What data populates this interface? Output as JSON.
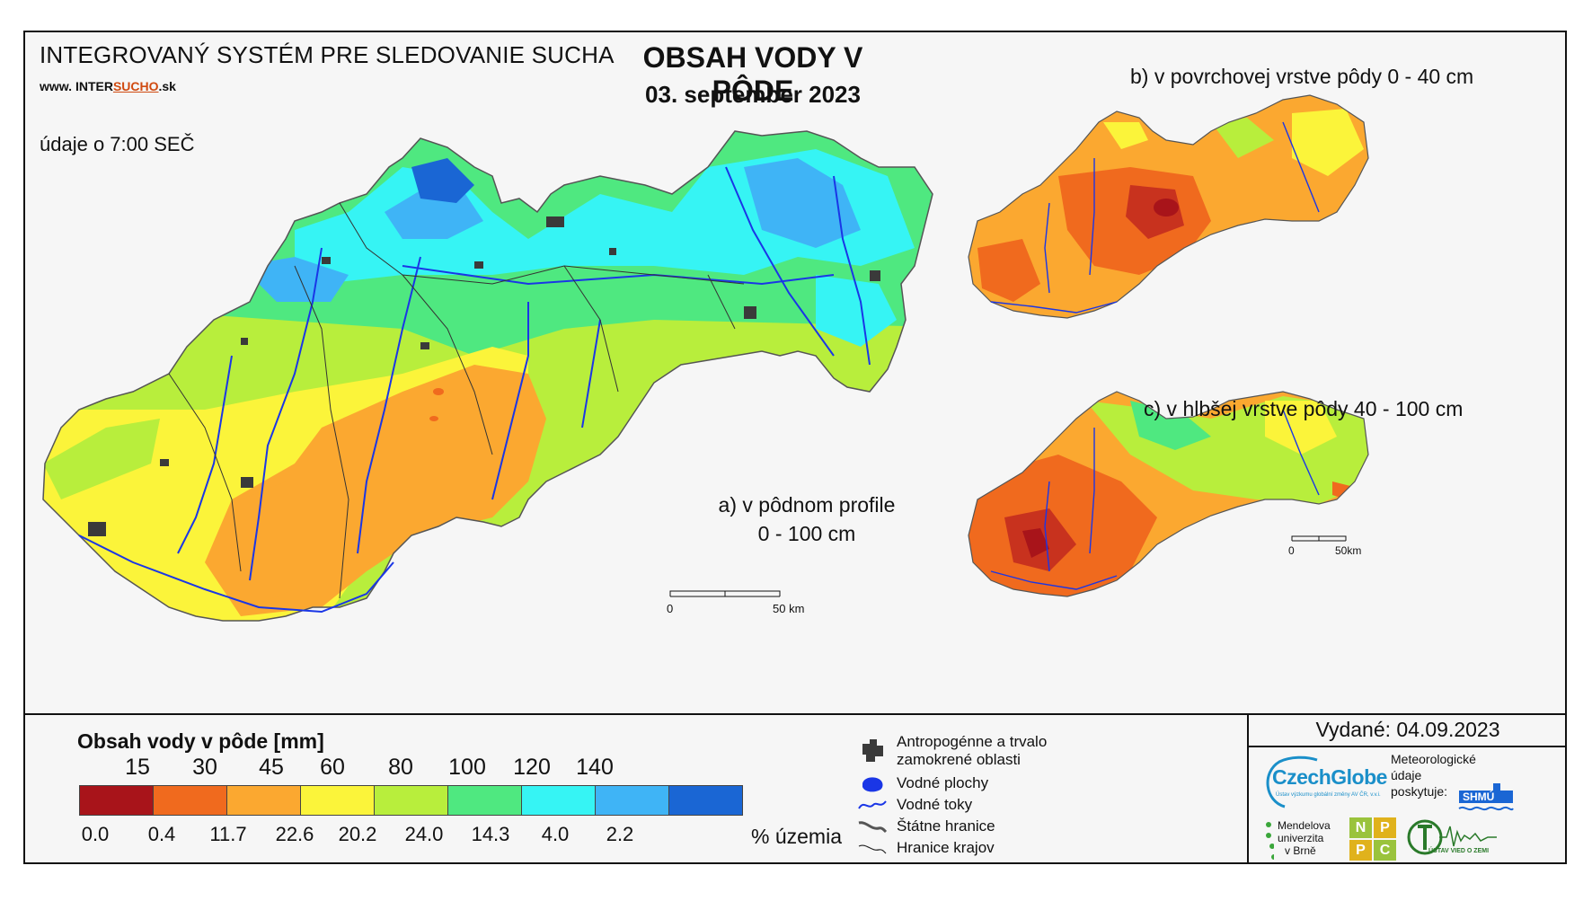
{
  "header": {
    "system_title": "INTEGROVANÝ SYSTÉM PRE SLEDOVANIE SUCHA",
    "website_prefix": "www.",
    "website_inter": "INTER",
    "website_sucho": "SUCHO",
    "website_suffix": ".sk",
    "time_note": "údaje o 7:00 SEČ",
    "main_title": "OBSAH VODY V PÔDE",
    "main_date": "03. september 2023"
  },
  "maps": {
    "a_label_line1": "a) v pôdnom profile",
    "a_label_line2": "0 - 100 cm",
    "b_label": "b) v povrchovej vrstve pôdy 0 - 40 cm",
    "c_label": "c) v hlbšej vrstve pôdy 40 - 100 cm",
    "scale_zero": "0",
    "scale_main": "50 km",
    "scale_small": "50km",
    "palette": {
      "class_0_15": "#a8141a",
      "class_15_30": "#f06a1e",
      "class_30_45": "#fba830",
      "class_45_60": "#fbf43a",
      "class_60_80": "#b8ee3c",
      "class_80_100": "#4fe880",
      "class_100_120": "#36f4f4",
      "class_120_140": "#3fb4f6",
      "class_140_plus": "#1a66d4",
      "rivers": "#1a36e6",
      "urban": "#3a3a3a"
    }
  },
  "legend": {
    "title": "Obsah vody v pôde  [mm]",
    "thresholds": [
      "15",
      "30",
      "45",
      "60",
      "80",
      "100",
      "120",
      "140"
    ],
    "colors": [
      "#a8141a",
      "#f06a1e",
      "#fba830",
      "#fbf43a",
      "#b8ee3c",
      "#4fe880",
      "#36f4f4",
      "#3fb4f6",
      "#1a66d4"
    ],
    "area_percent": [
      "0.0",
      "0.4",
      "11.7",
      "22.6",
      "20.2",
      "24.0",
      "14.3",
      "4.0",
      "2.2"
    ],
    "area_unit": "% územia",
    "symbols": {
      "urban_line1": "Antropogénne a trvalo",
      "urban_line2": "zamokrené oblasti",
      "water_bodies": "Vodné plochy",
      "rivers": "Vodné toky",
      "state_borders": "Štátne hranice",
      "region_borders": "Hranice krajov"
    }
  },
  "footer": {
    "issued": "Vydané: 04.09.2023",
    "czechglobe": "CzechGlobe",
    "czechglobe_sub": "Ústav výzkumu globální změny AV ČR, v.v.i.",
    "meteo_line1": "Meteorologické",
    "meteo_line2": "údaje",
    "meteo_line3": "poskytuje:",
    "shmu": "SHMÚ",
    "mendel_line1": "Mendelova",
    "mendel_line2": "univerzita",
    "mendel_line3": "v Brně",
    "nppc": [
      "N",
      "P",
      "P",
      "C"
    ],
    "uvz": "ÚSTAV VIED O ZEMI"
  }
}
